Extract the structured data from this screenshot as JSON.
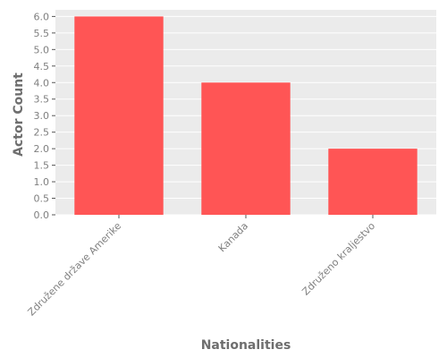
{
  "chart_data": {
    "type": "bar",
    "categories": [
      "Združene države Amerike",
      "Kanada",
      "Združeno kraljestvo"
    ],
    "values": [
      6,
      4,
      2
    ],
    "title": "",
    "xlabel": "Nationalities",
    "ylabel": "Actor Count",
    "ylim": [
      0,
      6.2
    ],
    "yticks": [
      "0.0",
      "0.5",
      "1.0",
      "1.5",
      "2.0",
      "2.5",
      "3.0",
      "3.5",
      "4.0",
      "4.5",
      "5.0",
      "5.5",
      "6.0"
    ],
    "grid": true,
    "legend": "none",
    "colors": {
      "bar": "#ff5555",
      "plot_background": "#ebebeb",
      "grid": "#ffffff",
      "text": "#7f7f7f"
    }
  }
}
